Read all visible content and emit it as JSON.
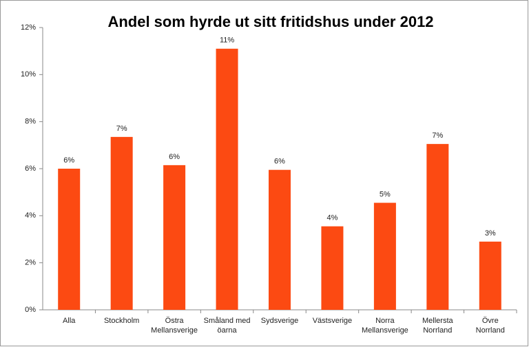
{
  "chart_data": {
    "type": "bar",
    "title": "Andel som hyrde ut sitt fritidshus under 2012",
    "categories": [
      "Alla",
      "Stockholm",
      "Östra Mellansverige",
      "Småland med öarna",
      "Sydsverige",
      "Västsverige",
      "Norra Mellansverige",
      "Mellersta Norrland",
      "Övre Norrland"
    ],
    "values": [
      6.0,
      7.35,
      6.15,
      11.1,
      5.95,
      3.55,
      4.55,
      7.05,
      2.9
    ],
    "value_labels": [
      "6%",
      "7%",
      "6%",
      "11%",
      "6%",
      "4%",
      "5%",
      "7%",
      "3%"
    ],
    "color": "#fc4a12",
    "ylim": [
      0,
      12
    ],
    "yticks": [
      {
        "value": 0,
        "label": "0%"
      },
      {
        "value": 2,
        "label": "2%"
      },
      {
        "value": 4,
        "label": "4%"
      },
      {
        "value": 6,
        "label": "6%"
      },
      {
        "value": 8,
        "label": "8%"
      },
      {
        "value": 10,
        "label": "10%"
      },
      {
        "value": 12,
        "label": "12%"
      }
    ],
    "grid": false
  }
}
